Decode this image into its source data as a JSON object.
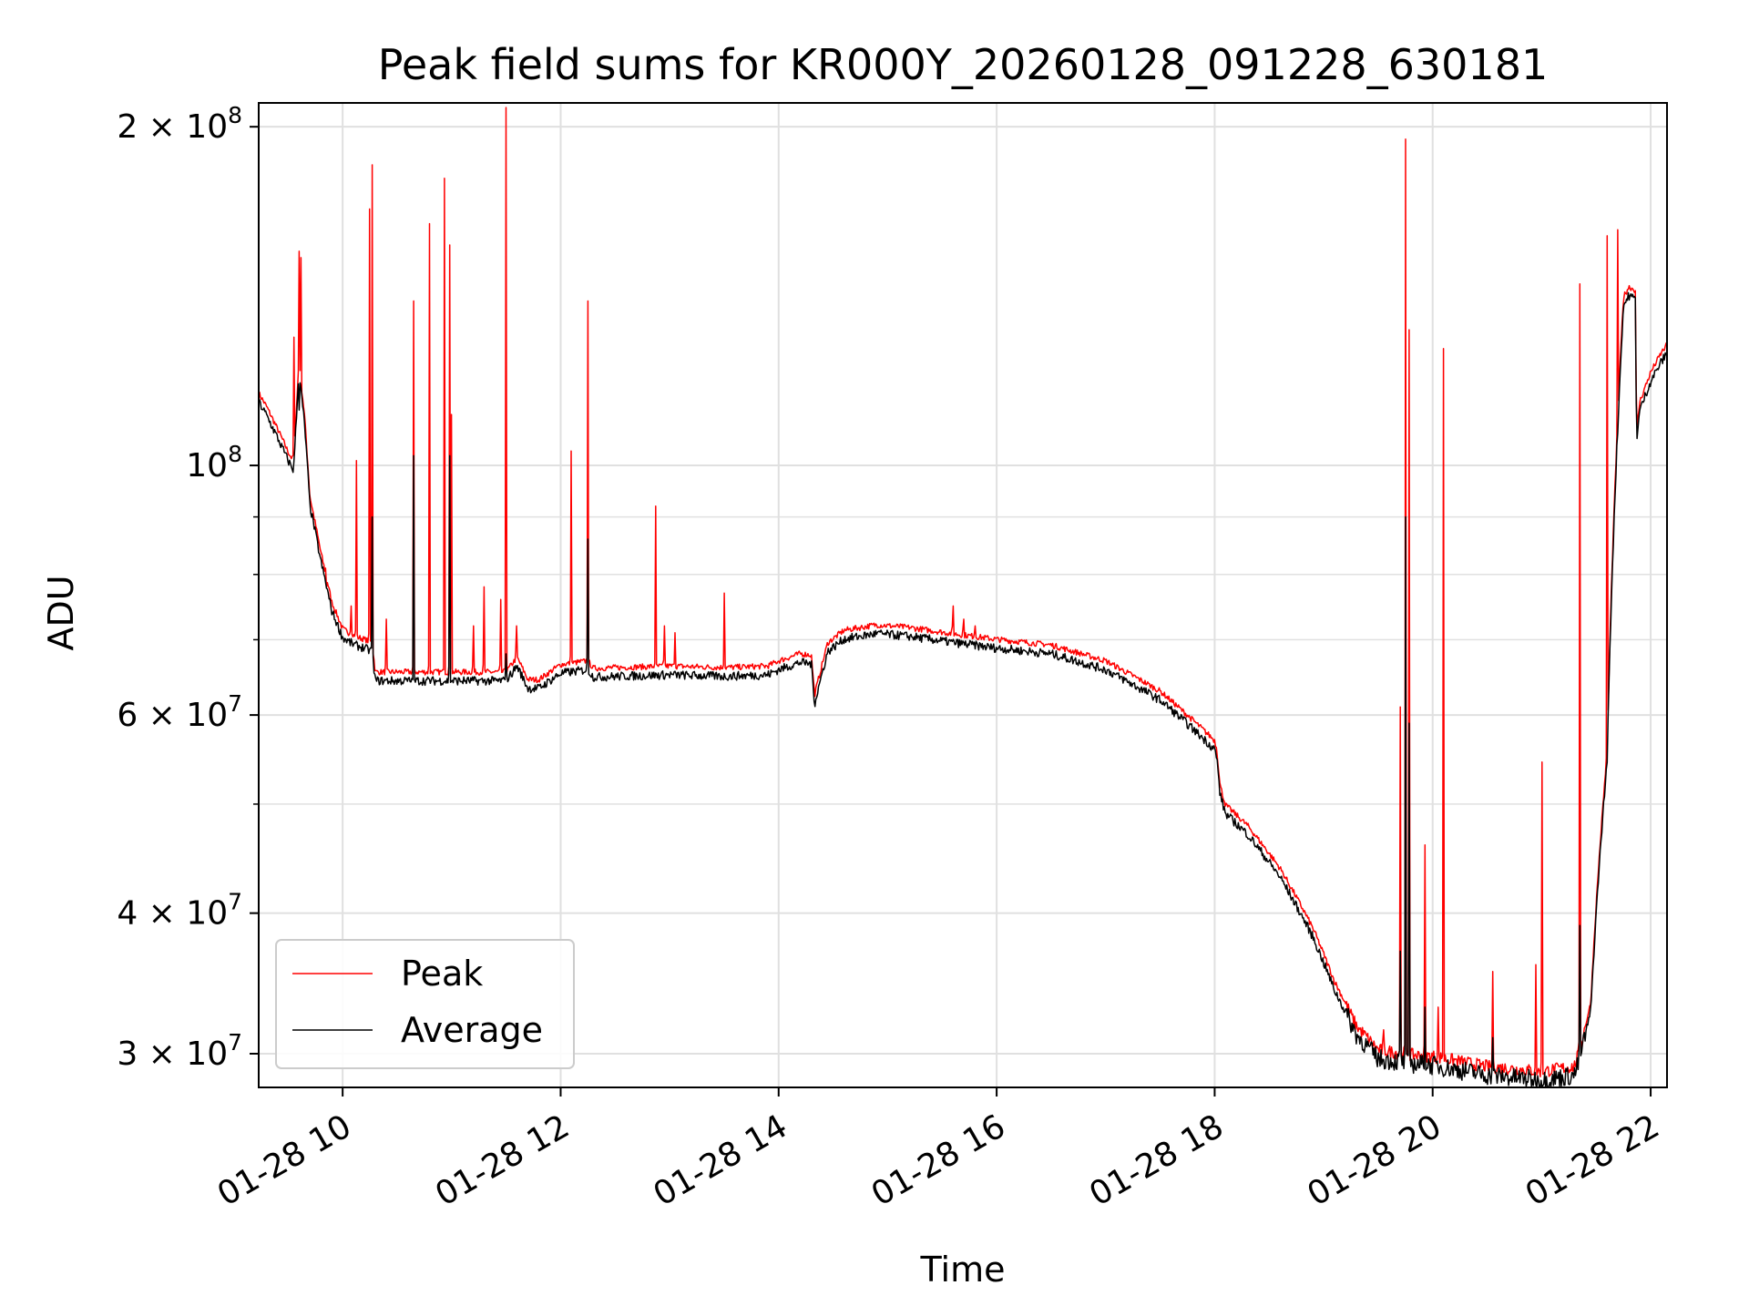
{
  "chart_data": {
    "type": "line",
    "title": "Peak field sums for KR000Y_20260128_091228_630181",
    "xlabel": "Time",
    "ylabel": "ADU",
    "yscale": "log",
    "xlim": [
      9.23,
      22.15
    ],
    "ylim": [
      28000000,
      210000000
    ],
    "x_unit": "hour of 2026-01-28",
    "x_ticks": [
      {
        "value": 10,
        "label": "01-28 10"
      },
      {
        "value": 12,
        "label": "01-28 12"
      },
      {
        "value": 14,
        "label": "01-28 14"
      },
      {
        "value": 16,
        "label": "01-28 16"
      },
      {
        "value": 18,
        "label": "01-28 18"
      },
      {
        "value": 20,
        "label": "01-28 20"
      },
      {
        "value": 22,
        "label": "01-28 22"
      }
    ],
    "y_major_ticks": [
      {
        "value": 30000000,
        "mantissa": "3",
        "exp": "7"
      },
      {
        "value": 40000000,
        "mantissa": "4",
        "exp": "7"
      },
      {
        "value": 60000000,
        "mantissa": "6",
        "exp": "7"
      },
      {
        "value": 100000000,
        "mantissa": "",
        "exp": "8"
      },
      {
        "value": 200000000,
        "mantissa": "2",
        "exp": "8"
      }
    ],
    "y_minor_ticks": [
      50000000,
      70000000,
      80000000,
      90000000
    ],
    "grid": true,
    "legend_position": "lower-left",
    "colors": {
      "peak": "#ff0000",
      "average": "#000000",
      "grid": "#e0e0e0"
    },
    "baseline": [
      [
        9.23,
        115
      ],
      [
        9.3,
        112
      ],
      [
        9.4,
        107
      ],
      [
        9.5,
        102
      ],
      [
        9.55,
        100
      ],
      [
        9.6,
        122
      ],
      [
        9.65,
        110
      ],
      [
        9.7,
        93
      ],
      [
        9.8,
        83
      ],
      [
        9.9,
        75
      ],
      [
        10.0,
        71
      ],
      [
        10.1,
        70
      ],
      [
        10.2,
        69.5
      ],
      [
        10.27,
        69
      ],
      [
        10.3,
        65
      ],
      [
        11.5,
        65
      ],
      [
        11.6,
        67
      ],
      [
        11.7,
        64
      ],
      [
        11.8,
        64
      ],
      [
        12.0,
        66
      ],
      [
        12.25,
        66.5
      ],
      [
        12.3,
        65.5
      ],
      [
        13.0,
        65.8
      ],
      [
        13.5,
        65.6
      ],
      [
        13.9,
        65.8
      ],
      [
        14.0,
        66.5
      ],
      [
        14.2,
        67.5
      ],
      [
        14.3,
        67.3
      ],
      [
        14.33,
        62
      ],
      [
        14.45,
        69
      ],
      [
        14.6,
        70.8
      ],
      [
        14.9,
        71.6
      ],
      [
        15.2,
        71.2
      ],
      [
        15.6,
        70.3
      ],
      [
        16.0,
        69.5
      ],
      [
        16.5,
        68.7
      ],
      [
        17.0,
        66.5
      ],
      [
        17.5,
        62.5
      ],
      [
        18.0,
        56.5
      ],
      [
        18.02,
        55.5
      ],
      [
        18.05,
        51.5
      ],
      [
        18.1,
        49.5
      ],
      [
        18.3,
        47.5
      ],
      [
        18.6,
        43.5
      ],
      [
        18.9,
        38.5
      ],
      [
        19.1,
        34.5
      ],
      [
        19.3,
        31.5
      ],
      [
        19.5,
        30.0
      ],
      [
        19.8,
        29.7
      ],
      [
        20.0,
        29.6
      ],
      [
        20.5,
        29.0
      ],
      [
        21.0,
        28.7
      ],
      [
        21.3,
        29.0
      ],
      [
        21.35,
        30.0
      ],
      [
        21.45,
        33
      ],
      [
        21.6,
        55
      ],
      [
        21.7,
        110
      ],
      [
        21.75,
        140
      ],
      [
        21.8,
        143
      ],
      [
        21.86,
        142
      ],
      [
        21.87,
        106
      ],
      [
        21.9,
        113
      ],
      [
        22.0,
        120
      ],
      [
        22.1,
        125
      ],
      [
        22.15,
        127
      ]
    ],
    "series": [
      {
        "name": "Peak",
        "spikes": [
          [
            9.55,
            130
          ],
          [
            9.6,
            155
          ],
          [
            9.62,
            153
          ],
          [
            9.85,
            78
          ],
          [
            10.08,
            75
          ],
          [
            10.13,
            101
          ],
          [
            10.25,
            169
          ],
          [
            10.27,
            185
          ],
          [
            10.4,
            73
          ],
          [
            10.65,
            140
          ],
          [
            10.8,
            164
          ],
          [
            10.93,
            180
          ],
          [
            10.98,
            157
          ],
          [
            11.0,
            111
          ],
          [
            11.2,
            72
          ],
          [
            11.3,
            78
          ],
          [
            11.45,
            76
          ],
          [
            11.5,
            208
          ],
          [
            11.6,
            72
          ],
          [
            12.1,
            103
          ],
          [
            12.25,
            140
          ],
          [
            12.87,
            92
          ],
          [
            12.95,
            72
          ],
          [
            13.05,
            71
          ],
          [
            13.5,
            77
          ],
          [
            15.6,
            75
          ],
          [
            15.7,
            73
          ],
          [
            15.8,
            72
          ],
          [
            19.55,
            31.5
          ],
          [
            19.7,
            61
          ],
          [
            19.75,
            195
          ],
          [
            19.78,
            132
          ],
          [
            19.93,
            46
          ],
          [
            20.05,
            33
          ],
          [
            20.1,
            127
          ],
          [
            20.55,
            35.5
          ],
          [
            20.95,
            36
          ],
          [
            21.0,
            54.5
          ],
          [
            21.35,
            145
          ],
          [
            21.6,
            160
          ],
          [
            21.7,
            162
          ]
        ]
      },
      {
        "name": "Average",
        "spikes": [
          [
            9.6,
            112
          ],
          [
            10.27,
            90
          ],
          [
            10.65,
            102
          ],
          [
            10.98,
            102
          ],
          [
            11.5,
            68
          ],
          [
            12.25,
            86
          ],
          [
            19.7,
            37
          ],
          [
            19.75,
            90
          ],
          [
            19.78,
            59
          ],
          [
            19.93,
            33
          ],
          [
            20.55,
            31
          ],
          [
            21.35,
            39
          ]
        ]
      }
    ]
  }
}
